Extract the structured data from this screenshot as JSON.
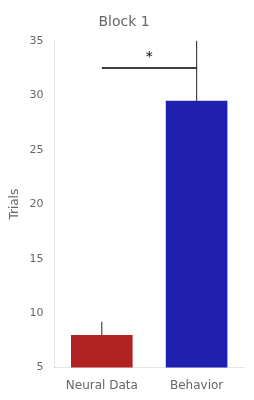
{
  "chart_data": {
    "type": "bar",
    "title": "Block 1",
    "categories": [
      "Neural Data",
      "Behavior"
    ],
    "values": [
      8.0,
      29.5
    ],
    "errors": [
      1.2,
      5.5
    ],
    "colors": [
      "#B22222",
      "#2020B0"
    ],
    "ylabel": "Trials",
    "ylim": [
      5,
      35
    ],
    "yticks": [
      5,
      10,
      15,
      20,
      25,
      30,
      35
    ],
    "annotations": [
      {
        "text": "*",
        "y": 33.2,
        "line_y": 32.5,
        "from": "Neural Data",
        "to": "Behavior"
      }
    ],
    "grid": false
  }
}
